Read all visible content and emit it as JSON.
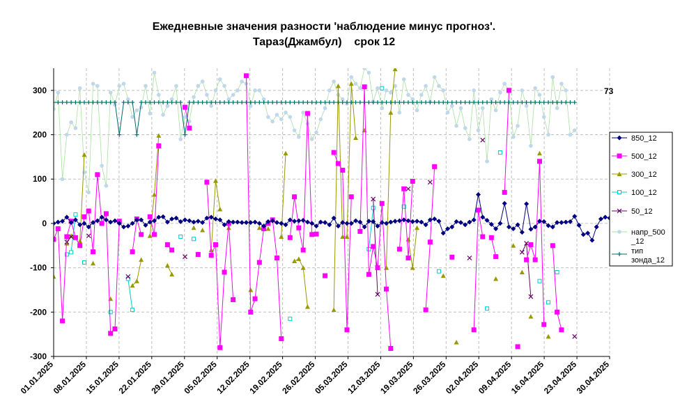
{
  "chart_data": {
    "type": "line",
    "title_line1": "Ежедневные значения разности 'наблюдение минус прогноз'.",
    "title_line2": "Тараз(Джамбул)    срок 12",
    "ylim": [
      -300,
      350
    ],
    "yticks": [
      -300,
      -200,
      -100,
      0,
      100,
      200,
      300
    ],
    "x_start": "2025-01-01",
    "x_end": "2025-04-30",
    "xtick_labels": [
      "01.01.2025",
      "08.01.2025",
      "15.01.2025",
      "22.01.2025",
      "29.01.2025",
      "05.02.2025",
      "12.02.2025",
      "19.02.2025",
      "26.02.2025",
      "05.03.2025",
      "12.03.2025",
      "19.03.2025",
      "26.03.2025",
      "02.04.2025",
      "09.04.2025",
      "16.04.2025",
      "23.04.2025",
      "30.04.2025"
    ],
    "last_value_label": "73",
    "grid": true,
    "legend_position": "right",
    "colors": {
      "850_12": "#000080",
      "500_12": "#ff00ff",
      "300_12": "#999900",
      "100_12": "#00cccc",
      "50_12": "#660066",
      "napr_500_12": "#c0d8ea",
      "tip_zonda_12": "#006b6b"
    },
    "series": [
      {
        "key": "850_12",
        "name": "850_12",
        "marker": "diamond",
        "values": [
          0,
          3,
          5,
          14,
          2,
          8,
          -3,
          0,
          -8,
          2,
          6,
          14,
          8,
          3,
          6,
          0,
          -8,
          -6,
          0,
          8,
          8,
          -4,
          3,
          6,
          14,
          15,
          3,
          10,
          12,
          4,
          8,
          6,
          3,
          5,
          2,
          12,
          14,
          10,
          8,
          -3,
          4,
          3,
          3,
          2,
          2,
          2,
          3,
          0,
          -6,
          4,
          6,
          2,
          0,
          -3,
          8,
          5,
          6,
          7,
          3,
          0,
          -6,
          3,
          2,
          -3,
          12,
          -6,
          2,
          0,
          0,
          6,
          3,
          -8,
          5,
          4,
          -6,
          2,
          0,
          3,
          5,
          6,
          8,
          6,
          4,
          5,
          3,
          -3,
          8,
          10,
          5,
          -22,
          -12,
          -8,
          4,
          2,
          -3,
          3,
          8,
          65,
          14,
          7,
          -2,
          -12,
          0,
          45,
          -8,
          -12,
          -3,
          -20,
          44,
          -13,
          -8,
          5,
          4,
          -5,
          -8,
          2,
          2,
          3,
          4,
          16,
          -4,
          -25,
          -22,
          -38,
          -8,
          10,
          14,
          12
        ]
      },
      {
        "key": "500_12",
        "name": "500_12",
        "marker": "square",
        "values": [
          -36,
          -12,
          -220,
          -30,
          5,
          -32,
          -50,
          15,
          28,
          -64,
          110,
          0,
          22,
          -248,
          -238,
          5,
          null,
          null,
          -64,
          10,
          -25,
          null,
          15,
          -25,
          175,
          null,
          -48,
          -60,
          null,
          null,
          262,
          215,
          null,
          -70,
          null,
          93,
          -72,
          -48,
          -280,
          -110,
          0,
          -172,
          null,
          null,
          333,
          -200,
          -170,
          -88,
          -12,
          0,
          8,
          -78,
          -260,
          null,
          -32,
          60,
          -10,
          -60,
          248,
          -25,
          -24,
          null,
          -118,
          null,
          160,
          135,
          120,
          -240,
          60,
          null,
          -18,
          308,
          -115,
          -52,
          -100,
          45,
          -148,
          -282,
          null,
          -58,
          78,
          -78,
          95,
          null,
          null,
          -195,
          -42,
          128,
          null,
          null,
          null,
          -76,
          null,
          null,
          null,
          null,
          -240,
          30,
          -30,
          null,
          -32,
          -75,
          null,
          70,
          300,
          null,
          -278,
          null,
          -82,
          -48,
          -82,
          140,
          -228,
          null,
          -50,
          -200,
          -240,
          null
        ]
      },
      {
        "key": "300_12",
        "name": "300_12",
        "marker": "triangle",
        "values": [
          -120,
          null,
          null,
          -45,
          -28,
          null,
          -40,
          155,
          null,
          -90,
          null,
          null,
          null,
          -170,
          null,
          null,
          null,
          null,
          -140,
          -130,
          -82,
          null,
          -28,
          65,
          198,
          null,
          -95,
          -115,
          null,
          null,
          null,
          null,
          -10,
          null,
          -15,
          null,
          -60,
          96,
          32,
          null,
          -10,
          null,
          null,
          null,
          null,
          -150,
          null,
          -10,
          null,
          -12,
          null,
          null,
          -30,
          158,
          null,
          -85,
          -80,
          -100,
          -188,
          null,
          null,
          null,
          null,
          null,
          -195,
          310,
          -30,
          -30,
          315,
          193,
          null,
          210,
          null,
          null,
          null,
          null,
          -100,
          250,
          348,
          null,
          null,
          -36,
          -100,
          -10,
          null,
          null,
          null,
          null,
          null,
          -118,
          null,
          null,
          -268,
          null,
          null,
          null,
          null,
          null,
          null,
          null,
          null,
          -125,
          null,
          null,
          null,
          -50,
          null,
          -110,
          null,
          -210,
          null,
          158,
          null,
          -255,
          null,
          null,
          null,
          null,
          null,
          null
        ]
      },
      {
        "key": "100_12",
        "name": "100_12",
        "marker": "square-open",
        "values": [
          null,
          null,
          null,
          -70,
          -65,
          20,
          null,
          -88,
          null,
          null,
          null,
          null,
          null,
          -200,
          null,
          null,
          null,
          -125,
          -195,
          null,
          null,
          null,
          null,
          null,
          null,
          null,
          null,
          null,
          null,
          -30,
          null,
          null,
          -35,
          null,
          null,
          null,
          null,
          null,
          null,
          null,
          null,
          null,
          null,
          null,
          null,
          null,
          null,
          null,
          null,
          null,
          null,
          null,
          null,
          null,
          -215,
          null,
          null,
          null,
          null,
          null,
          null,
          null,
          null,
          null,
          null,
          null,
          null,
          null,
          null,
          null,
          null,
          null,
          -58,
          35,
          null,
          305,
          null,
          null,
          null,
          null,
          38,
          null,
          null,
          null,
          null,
          null,
          null,
          null,
          -108,
          null,
          null,
          null,
          null,
          null,
          null,
          null,
          null,
          null,
          null,
          -192,
          null,
          null,
          160,
          null,
          null,
          null,
          null,
          null,
          null,
          null,
          null,
          -130,
          null,
          -178,
          null,
          -110,
          null,
          null,
          null,
          null,
          null,
          null
        ]
      },
      {
        "key": "50_12",
        "name": "50_12",
        "marker": "x",
        "values": [
          null,
          null,
          null,
          -42,
          -30,
          null,
          null,
          null,
          -28,
          null,
          null,
          null,
          null,
          null,
          null,
          null,
          null,
          -120,
          null,
          null,
          null,
          null,
          null,
          null,
          null,
          null,
          null,
          null,
          null,
          null,
          -75,
          null,
          null,
          null,
          null,
          null,
          null,
          null,
          null,
          null,
          null,
          null,
          null,
          null,
          null,
          null,
          null,
          null,
          null,
          null,
          null,
          null,
          null,
          null,
          null,
          null,
          null,
          null,
          null,
          null,
          null,
          null,
          null,
          null,
          null,
          null,
          null,
          null,
          null,
          null,
          null,
          null,
          null,
          55,
          -160,
          null,
          null,
          null,
          null,
          null,
          null,
          78,
          null,
          null,
          null,
          null,
          93,
          null,
          null,
          null,
          null,
          null,
          null,
          null,
          null,
          -78,
          null,
          null,
          188,
          null,
          null,
          null,
          null,
          null,
          null,
          null,
          null,
          -65,
          -45,
          -165,
          null,
          null,
          null,
          null,
          null,
          null,
          null,
          null,
          null,
          -255
        ]
      },
      {
        "key": "napr_500_12",
        "name": "напр_500_12",
        "marker": "circle",
        "values": [
          258,
          295,
          100,
          200,
          228,
          215,
          305,
          115,
          70,
          315,
          310,
          130,
          85,
          295,
          268,
          310,
          315,
          280,
          240,
          255,
          262,
          310,
          248,
          340,
          290,
          245,
          265,
          280,
          310,
          190,
          240,
          230,
          285,
          310,
          320,
          290,
          265,
          300,
          325,
          310,
          280,
          290,
          300,
          320,
          315,
          265,
          300,
          300,
          280,
          240,
          230,
          245,
          235,
          250,
          240,
          210,
          195,
          250,
          225,
          190,
          205,
          235,
          260,
          300,
          320,
          290,
          280,
          270,
          330,
          315,
          305,
          350,
          340,
          275,
          305,
          260,
          300,
          295,
          310,
          250,
          325,
          290,
          280,
          255,
          290,
          310,
          275,
          330,
          310,
          300,
          250,
          265,
          220,
          260,
          215,
          190,
          300,
          210,
          260,
          140,
          280,
          255,
          295,
          315,
          300,
          195,
          220,
          300,
          265,
          175,
          305,
          290,
          240,
          200,
          330,
          260,
          315,
          300,
          200,
          210
        ]
      },
      {
        "key": "tip_zonda_12",
        "name": "тип зонда_12",
        "marker": "plus",
        "values": [
          273,
          273,
          273,
          273,
          273,
          273,
          273,
          273,
          273,
          273,
          273,
          273,
          273,
          273,
          273,
          200,
          273,
          273,
          273,
          200,
          273,
          273,
          273,
          273,
          273,
          273,
          273,
          273,
          273,
          273,
          200,
          273,
          273,
          273,
          273,
          273,
          273,
          273,
          273,
          273,
          273,
          273,
          273,
          273,
          273,
          273,
          273,
          273,
          273,
          273,
          273,
          273,
          273,
          273,
          273,
          273,
          273,
          273,
          273,
          273,
          273,
          273,
          273,
          273,
          273,
          273,
          273,
          273,
          273,
          273,
          273,
          273,
          273,
          273,
          273,
          273,
          273,
          273,
          273,
          273,
          273,
          273,
          273,
          273,
          273,
          273,
          273,
          273,
          273,
          273,
          273,
          273,
          273,
          273,
          273,
          273,
          273,
          273,
          273,
          273,
          273,
          273,
          273,
          273,
          273,
          273,
          273,
          273,
          273,
          273,
          273,
          273,
          273,
          273,
          273,
          273,
          273,
          273,
          273,
          273
        ]
      }
    ]
  }
}
